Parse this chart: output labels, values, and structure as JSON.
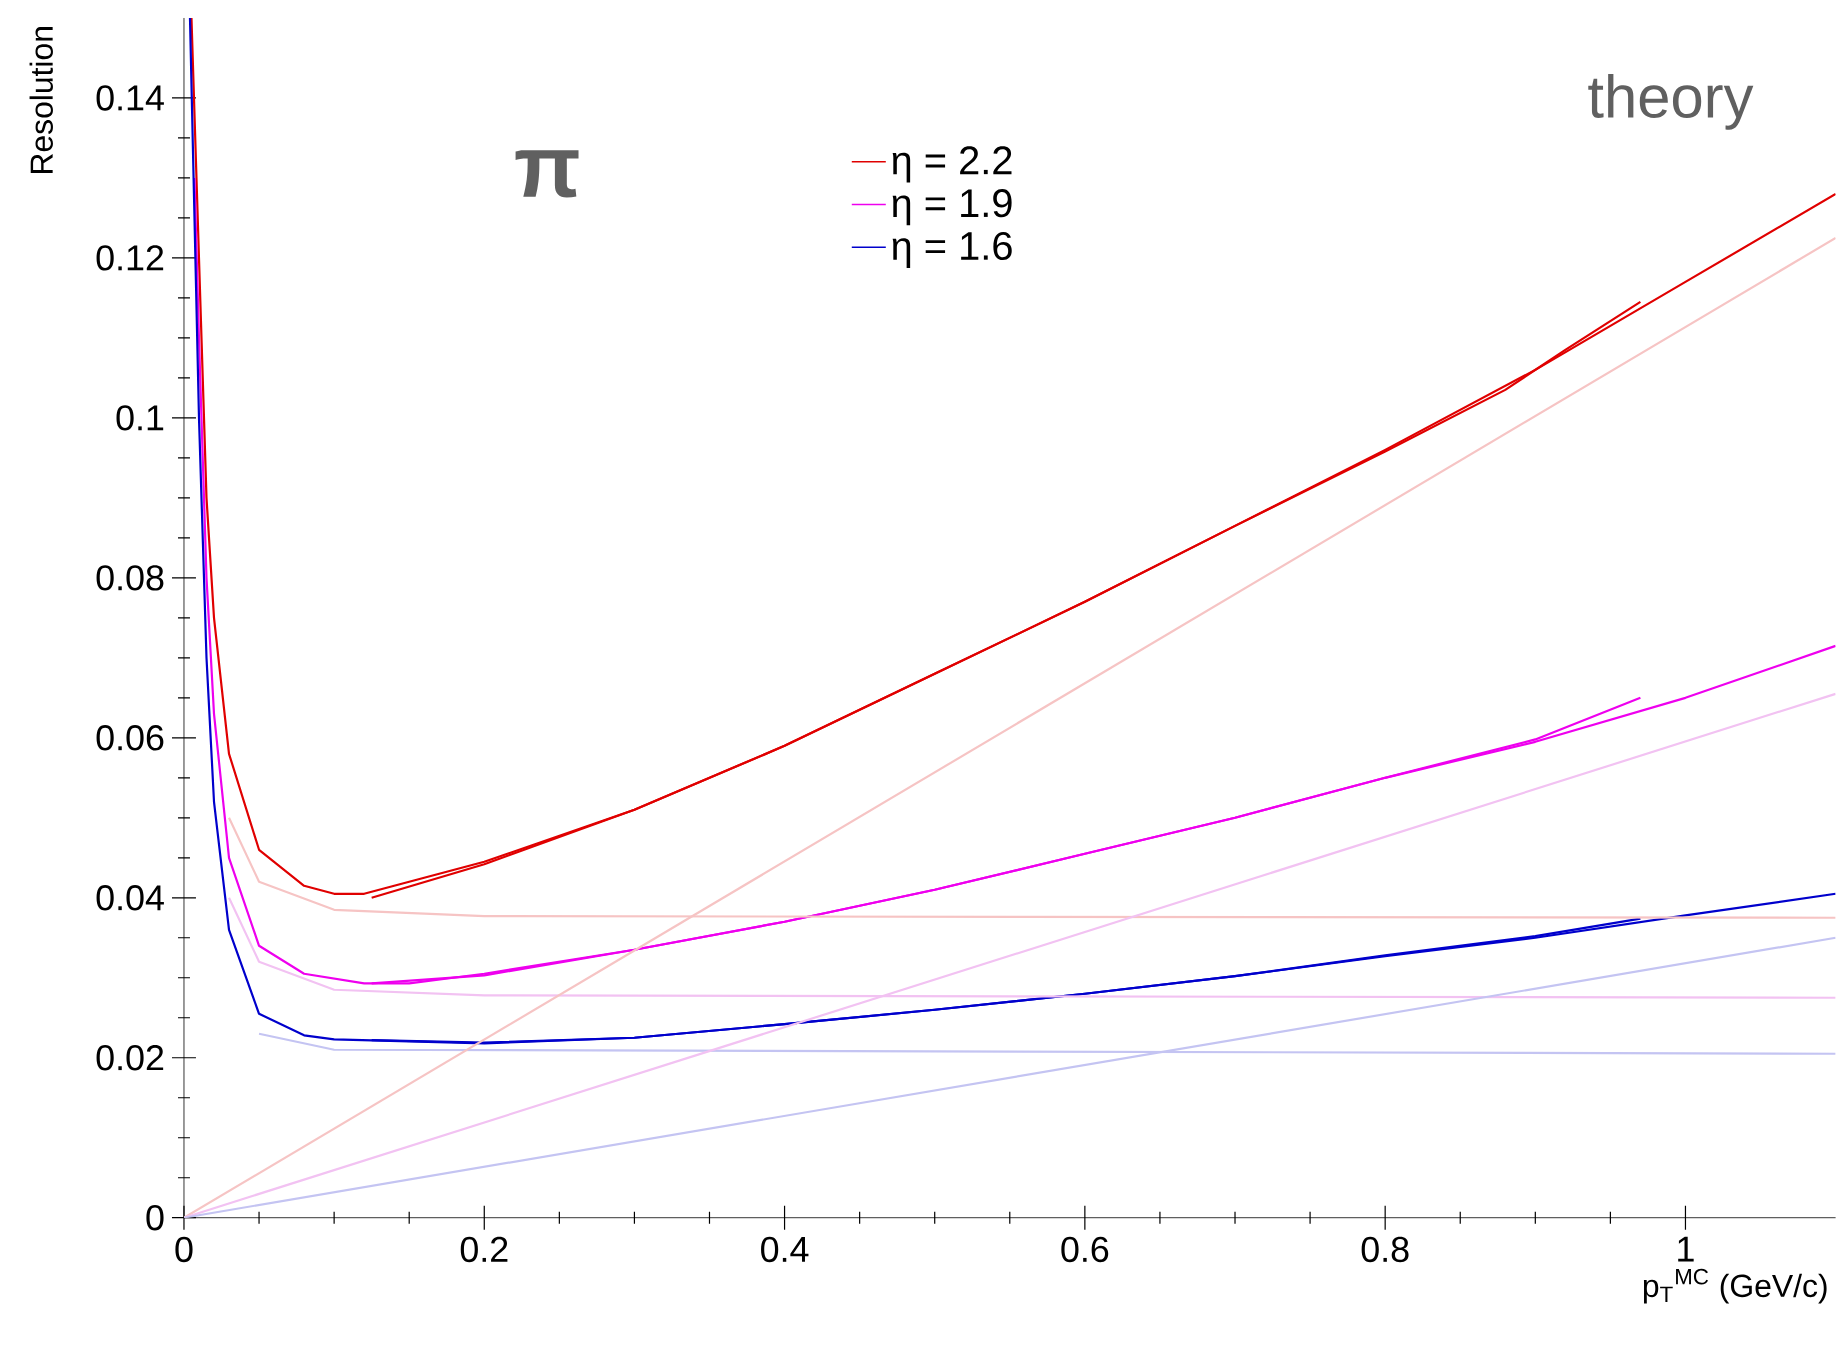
{
  "chart_data": {
    "type": "line",
    "xlabel": "p$_{T}$$^{MC}$ (GeV/c)",
    "ylabel": "Resolution",
    "annotations": [
      "π",
      "theory"
    ],
    "xlim": [
      0,
      1.1
    ],
    "ylim": [
      0,
      0.15
    ],
    "xticks": [
      0,
      0.2,
      0.4,
      0.6,
      0.8,
      1
    ],
    "yticks": [
      0,
      0.02,
      0.04,
      0.06,
      0.08,
      0.1,
      0.12,
      0.14
    ],
    "legend": "top",
    "grid": false,
    "marker": "none",
    "line_style": "solid",
    "series": [
      {
        "name": "η = 2.2",
        "color": "#e00000",
        "x": [
          0.005,
          0.01,
          0.015,
          0.02,
          0.03,
          0.05,
          0.08,
          0.1,
          0.12,
          0.2,
          0.3,
          0.4,
          0.5,
          0.6,
          0.7,
          0.8,
          0.9,
          1.0,
          1.1
        ],
        "values": [
          0.15,
          0.12,
          0.09,
          0.075,
          0.058,
          0.046,
          0.0415,
          0.0405,
          0.0405,
          0.0445,
          0.051,
          0.059,
          0.068,
          0.077,
          0.0865,
          0.096,
          0.106,
          0.117,
          0.128
        ]
      },
      {
        "name": "η = 1.9",
        "color": "#ee00ee",
        "x": [
          0.007,
          0.01,
          0.015,
          0.02,
          0.03,
          0.05,
          0.08,
          0.12,
          0.15,
          0.2,
          0.3,
          0.4,
          0.5,
          0.6,
          0.7,
          0.8,
          0.9,
          1.0,
          1.1
        ],
        "values": [
          0.13,
          0.11,
          0.08,
          0.063,
          0.045,
          0.034,
          0.0305,
          0.0293,
          0.0293,
          0.0305,
          0.0335,
          0.037,
          0.041,
          0.0455,
          0.05,
          0.055,
          0.0595,
          0.065,
          0.0715
        ]
      },
      {
        "name": "η = 1.6",
        "color": "#0000cc",
        "x": [
          0.004,
          0.01,
          0.015,
          0.02,
          0.03,
          0.05,
          0.08,
          0.1,
          0.2,
          0.3,
          0.4,
          0.5,
          0.6,
          0.7,
          0.8,
          0.9,
          1.0,
          1.1
        ],
        "values": [
          0.15,
          0.1,
          0.07,
          0.052,
          0.036,
          0.0255,
          0.0228,
          0.0223,
          0.0218,
          0.0225,
          0.0242,
          0.026,
          0.028,
          0.0302,
          0.0327,
          0.035,
          0.0378,
          0.0405
        ]
      },
      {
        "color": "#e00000",
        "x": [
          0.125,
          0.2,
          0.3,
          0.4,
          0.5,
          0.6,
          0.7,
          0.8,
          0.88,
          0.92,
          0.97
        ],
        "values": [
          0.04,
          0.0442,
          0.051,
          0.059,
          0.068,
          0.077,
          0.0865,
          0.0958,
          0.1035,
          0.1085,
          0.1145
        ]
      },
      {
        "color": "#ee00ee",
        "x": [
          0.125,
          0.2,
          0.3,
          0.4,
          0.5,
          0.6,
          0.7,
          0.8,
          0.9,
          0.97
        ],
        "values": [
          0.0293,
          0.0303,
          0.0335,
          0.037,
          0.041,
          0.0455,
          0.05,
          0.055,
          0.0598,
          0.065
        ]
      },
      {
        "color": "#0000cc",
        "x": [
          0.125,
          0.2,
          0.3,
          0.4,
          0.5,
          0.6,
          0.7,
          0.8,
          0.9,
          0.97
        ],
        "values": [
          0.0222,
          0.0219,
          0.0225,
          0.0242,
          0.026,
          0.028,
          0.0302,
          0.0328,
          0.0352,
          0.0374
        ]
      },
      {
        "color": "#f6c4c4",
        "x": [
          0.03,
          0.05,
          0.1,
          0.2,
          1.1
        ],
        "values": [
          0.05,
          0.042,
          0.0385,
          0.0377,
          0.0375
        ]
      },
      {
        "color": "#f2c2f2",
        "x": [
          0.03,
          0.05,
          0.1,
          0.2,
          1.1
        ],
        "values": [
          0.04,
          0.032,
          0.0285,
          0.0278,
          0.0275
        ]
      },
      {
        "color": "#c4c4f2",
        "x": [
          0.05,
          0.1,
          1.1
        ],
        "values": [
          0.023,
          0.021,
          0.0205
        ]
      },
      {
        "color": "#f6c4c4",
        "x": [
          0,
          1.1
        ],
        "values": [
          0,
          0.1225
        ]
      },
      {
        "color": "#f2c2f2",
        "x": [
          0,
          1.1
        ],
        "values": [
          0,
          0.0655
        ]
      },
      {
        "color": "#c4c4f2",
        "x": [
          0,
          1.1
        ],
        "values": [
          0,
          0.035
        ]
      }
    ]
  }
}
